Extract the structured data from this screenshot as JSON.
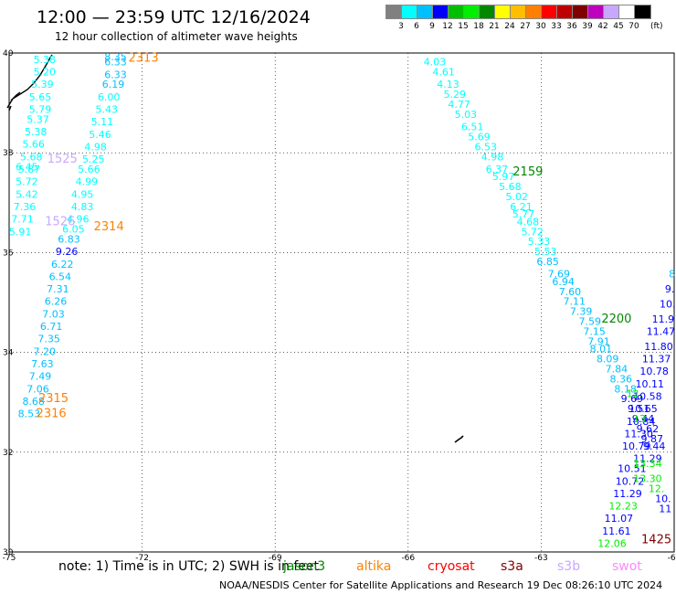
{
  "title": "12:00 — 23:59 UTC 12/16/2024",
  "subtitle": "12 hour collection of altimeter wave heights",
  "legend": {
    "levels": [
      "3",
      "6",
      "9",
      "12",
      "15",
      "18",
      "21",
      "24",
      "27",
      "30",
      "33",
      "36",
      "39",
      "42",
      "45",
      "70"
    ],
    "colors": [
      "#808080",
      "#00ffff",
      "#00bfff",
      "#0000ff",
      "#00bf00",
      "#00ee00",
      "#008800",
      "#ffff00",
      "#ffbf00",
      "#ff8000",
      "#ff0000",
      "#bf0000",
      "#800000",
      "#bf00bf",
      "#c8a8ff",
      "#ffffff",
      "#000000"
    ],
    "unit": "(ft)"
  },
  "axes": {
    "lon_labels": [
      "-75",
      "-72",
      "-69",
      "-66",
      "-63",
      "-60"
    ],
    "lat_labels": [
      "40",
      "38",
      "36",
      "34",
      "32",
      "30"
    ]
  },
  "note": "note:  1) Time is in UTC; 2) SWH is in feet",
  "satellites": [
    {
      "name": "jason3",
      "color": "#008800"
    },
    {
      "name": "altika",
      "color": "#ff8000"
    },
    {
      "name": "cryosat",
      "color": "#ff0000"
    },
    {
      "name": "s3a",
      "color": "#800000"
    },
    {
      "name": "s3b",
      "color": "#c8a8ff"
    },
    {
      "name": "swot",
      "color": "#ff88ff"
    }
  ],
  "credit": "NOAA/NESDIS Center for Satellite Applications and Research    19 Dec 08:26:10 UTC 2024",
  "track_labels": [
    {
      "text": "2313",
      "lon": -71.97,
      "lat": 39.83,
      "color": "#ff8000"
    },
    {
      "text": "1525",
      "lon": -73.8,
      "lat": 37.8,
      "color": "#c8a8ff"
    },
    {
      "text": "1526",
      "lon": -73.85,
      "lat": 36.55,
      "color": "#c8a8ff"
    },
    {
      "text": "2314",
      "lon": -72.75,
      "lat": 36.45,
      "color": "#ff8000"
    },
    {
      "text": "2315",
      "lon": -74.0,
      "lat": 33.0,
      "color": "#ff8000"
    },
    {
      "text": "2316",
      "lon": -74.05,
      "lat": 32.7,
      "color": "#ff8000"
    },
    {
      "text": "2159",
      "lon": -63.3,
      "lat": 37.55,
      "color": "#008800"
    },
    {
      "text": "2200",
      "lon": -61.3,
      "lat": 34.6,
      "color": "#008800"
    },
    {
      "text": "1425",
      "lon": -60.4,
      "lat": 30.17,
      "color": "#800000"
    }
  ],
  "swh_points": [
    {
      "v": "5.38",
      "lon": -74.2,
      "lat": 39.8,
      "c": "#00ffff"
    },
    {
      "v": "5.20",
      "lon": -74.2,
      "lat": 39.55,
      "c": "#00ffff"
    },
    {
      "v": "5.39",
      "lon": -74.25,
      "lat": 39.3,
      "c": "#00ffff"
    },
    {
      "v": "5.65",
      "lon": -74.3,
      "lat": 39.05,
      "c": "#00ffff"
    },
    {
      "v": "5.79",
      "lon": -74.3,
      "lat": 38.8,
      "c": "#00ffff"
    },
    {
      "v": "5.37",
      "lon": -74.35,
      "lat": 38.6,
      "c": "#00ffff"
    },
    {
      "v": "5.38",
      "lon": -74.4,
      "lat": 38.35,
      "c": "#00ffff"
    },
    {
      "v": "5.66",
      "lon": -74.45,
      "lat": 38.1,
      "c": "#00ffff"
    },
    {
      "v": "5.68",
      "lon": -74.5,
      "lat": 37.85,
      "c": "#00ffff"
    },
    {
      "v": "6.45",
      "lon": -74.6,
      "lat": 37.65,
      "c": "#00ffff"
    },
    {
      "v": "5.87",
      "lon": -74.55,
      "lat": 37.6,
      "c": "#00ffff"
    },
    {
      "v": "5.72",
      "lon": -74.6,
      "lat": 37.35,
      "c": "#00ffff"
    },
    {
      "v": "5.42",
      "lon": -74.6,
      "lat": 37.1,
      "c": "#00ffff"
    },
    {
      "v": "7.36",
      "lon": -74.65,
      "lat": 36.85,
      "c": "#00ffff"
    },
    {
      "v": "7.71",
      "lon": -74.7,
      "lat": 36.6,
      "c": "#00ffff"
    },
    {
      "v": "5.91",
      "lon": -74.75,
      "lat": 36.35,
      "c": "#00ffff"
    },
    {
      "v": "8.35",
      "lon": -72.6,
      "lat": 39.85,
      "c": "#00bfff"
    },
    {
      "v": "6.33",
      "lon": -72.6,
      "lat": 39.75,
      "c": "#00bfff"
    },
    {
      "v": "6.33",
      "lon": -72.6,
      "lat": 39.5,
      "c": "#00bfff"
    },
    {
      "v": "6.19",
      "lon": -72.65,
      "lat": 39.3,
      "c": "#00bfff"
    },
    {
      "v": "6.00",
      "lon": -72.75,
      "lat": 39.05,
      "c": "#00ffff"
    },
    {
      "v": "5.43",
      "lon": -72.8,
      "lat": 38.8,
      "c": "#00ffff"
    },
    {
      "v": "5.11",
      "lon": -72.9,
      "lat": 38.55,
      "c": "#00ffff"
    },
    {
      "v": "5.46",
      "lon": -72.95,
      "lat": 38.3,
      "c": "#00ffff"
    },
    {
      "v": "4.98",
      "lon": -73.05,
      "lat": 38.05,
      "c": "#00ffff"
    },
    {
      "v": "5.25",
      "lon": -73.1,
      "lat": 37.8,
      "c": "#00ffff"
    },
    {
      "v": "5.66",
      "lon": -73.2,
      "lat": 37.6,
      "c": "#00ffff"
    },
    {
      "v": "4.99",
      "lon": -73.25,
      "lat": 37.35,
      "c": "#00ffff"
    },
    {
      "v": "4.95",
      "lon": -73.35,
      "lat": 37.1,
      "c": "#00ffff"
    },
    {
      "v": "4.83",
      "lon": -73.35,
      "lat": 36.85,
      "c": "#00ffff"
    },
    {
      "v": "4.96",
      "lon": -73.45,
      "lat": 36.6,
      "c": "#00ffff"
    },
    {
      "v": "6.05",
      "lon": -73.55,
      "lat": 36.4,
      "c": "#00ffff"
    },
    {
      "v": "6.83",
      "lon": -73.65,
      "lat": 36.2,
      "c": "#00bfff"
    },
    {
      "v": "9.26",
      "lon": -73.7,
      "lat": 35.95,
      "c": "#0000ff"
    },
    {
      "v": "6.22",
      "lon": -73.8,
      "lat": 35.7,
      "c": "#00bfff"
    },
    {
      "v": "6.54",
      "lon": -73.85,
      "lat": 35.45,
      "c": "#00bfff"
    },
    {
      "v": "7.31",
      "lon": -73.9,
      "lat": 35.2,
      "c": "#00bfff"
    },
    {
      "v": "6.26",
      "lon": -73.95,
      "lat": 34.95,
      "c": "#00bfff"
    },
    {
      "v": "7.03",
      "lon": -74.0,
      "lat": 34.7,
      "c": "#00bfff"
    },
    {
      "v": "6.71",
      "lon": -74.05,
      "lat": 34.45,
      "c": "#00bfff"
    },
    {
      "v": "7.35",
      "lon": -74.1,
      "lat": 34.2,
      "c": "#00bfff"
    },
    {
      "v": "7.20",
      "lon": -74.2,
      "lat": 33.95,
      "c": "#00bfff"
    },
    {
      "v": "7.63",
      "lon": -74.25,
      "lat": 33.7,
      "c": "#00bfff"
    },
    {
      "v": "7.49",
      "lon": -74.3,
      "lat": 33.45,
      "c": "#00bfff"
    },
    {
      "v": "7.06",
      "lon": -74.35,
      "lat": 33.2,
      "c": "#00bfff"
    },
    {
      "v": "8.68",
      "lon": -74.45,
      "lat": 32.95,
      "c": "#00bfff"
    },
    {
      "v": "8.53",
      "lon": -74.55,
      "lat": 32.7,
      "c": "#00bfff"
    },
    {
      "v": "4.03",
      "lon": -65.4,
      "lat": 39.75,
      "c": "#00ffff"
    },
    {
      "v": "4.61",
      "lon": -65.2,
      "lat": 39.55,
      "c": "#00ffff"
    },
    {
      "v": "4.13",
      "lon": -65.1,
      "lat": 39.3,
      "c": "#00ffff"
    },
    {
      "v": "5.29",
      "lon": -64.95,
      "lat": 39.1,
      "c": "#00ffff"
    },
    {
      "v": "4.77",
      "lon": -64.85,
      "lat": 38.9,
      "c": "#00ffff"
    },
    {
      "v": "5.03",
      "lon": -64.7,
      "lat": 38.7,
      "c": "#00ffff"
    },
    {
      "v": "6.51",
      "lon": -64.55,
      "lat": 38.45,
      "c": "#00ffff"
    },
    {
      "v": "5.69",
      "lon": -64.4,
      "lat": 38.25,
      "c": "#00ffff"
    },
    {
      "v": "6.53",
      "lon": -64.25,
      "lat": 38.05,
      "c": "#00ffff"
    },
    {
      "v": "4.98",
      "lon": -64.1,
      "lat": 37.85,
      "c": "#00ffff"
    },
    {
      "v": "6.37",
      "lon": -64.0,
      "lat": 37.6,
      "c": "#00ffff"
    },
    {
      "v": "5.97",
      "lon": -63.85,
      "lat": 37.45,
      "c": "#00ffff"
    },
    {
      "v": "5.68",
      "lon": -63.7,
      "lat": 37.25,
      "c": "#00ffff"
    },
    {
      "v": "5.02",
      "lon": -63.55,
      "lat": 37.05,
      "c": "#00ffff"
    },
    {
      "v": "6.21",
      "lon": -63.45,
      "lat": 36.85,
      "c": "#00ffff"
    },
    {
      "v": "5.77",
      "lon": -63.4,
      "lat": 36.7,
      "c": "#00ffff"
    },
    {
      "v": "4.68",
      "lon": -63.3,
      "lat": 36.55,
      "c": "#00ffff"
    },
    {
      "v": "5.72",
      "lon": -63.2,
      "lat": 36.35,
      "c": "#00ffff"
    },
    {
      "v": "5.33",
      "lon": -63.05,
      "lat": 36.15,
      "c": "#00ffff"
    },
    {
      "v": "5.53",
      "lon": -62.9,
      "lat": 35.95,
      "c": "#00ffff"
    },
    {
      "v": "6.85",
      "lon": -62.85,
      "lat": 35.75,
      "c": "#00bfff"
    },
    {
      "v": "7.69",
      "lon": -62.6,
      "lat": 35.5,
      "c": "#00bfff"
    },
    {
      "v": "6.94",
      "lon": -62.5,
      "lat": 35.35,
      "c": "#00bfff"
    },
    {
      "v": "7.60",
      "lon": -62.35,
      "lat": 35.15,
      "c": "#00bfff"
    },
    {
      "v": "7.11",
      "lon": -62.25,
      "lat": 34.95,
      "c": "#00bfff"
    },
    {
      "v": "7.39",
      "lon": -62.1,
      "lat": 34.75,
      "c": "#00bfff"
    },
    {
      "v": "7.59",
      "lon": -61.9,
      "lat": 34.55,
      "c": "#00bfff"
    },
    {
      "v": "7.15",
      "lon": -61.8,
      "lat": 34.35,
      "c": "#00bfff"
    },
    {
      "v": "7.91",
      "lon": -61.7,
      "lat": 34.15,
      "c": "#00bfff"
    },
    {
      "v": "8.01",
      "lon": -61.65,
      "lat": 34.0,
      "c": "#00bfff"
    },
    {
      "v": "8.09",
      "lon": -61.5,
      "lat": 33.8,
      "c": "#00bfff"
    },
    {
      "v": "7.84",
      "lon": -61.3,
      "lat": 33.6,
      "c": "#00bfff"
    },
    {
      "v": "8.36",
      "lon": -61.2,
      "lat": 33.4,
      "c": "#00bfff"
    },
    {
      "v": "8.18",
      "lon": -61.1,
      "lat": 33.2,
      "c": "#00bfff"
    },
    {
      "v": "9.69",
      "lon": -60.95,
      "lat": 33.0,
      "c": "#0000ff"
    },
    {
      "v": "9.51",
      "lon": -60.8,
      "lat": 32.8,
      "c": "#0000ff"
    },
    {
      "v": "9.44",
      "lon": -60.7,
      "lat": 32.6,
      "c": "#0000ff"
    },
    {
      "v": "9.62",
      "lon": -60.6,
      "lat": 32.4,
      "c": "#0000ff"
    },
    {
      "v": "9.87",
      "lon": -60.5,
      "lat": 32.2,
      "c": "#0000ff"
    },
    {
      "v": "9.44",
      "lon": -60.45,
      "lat": 32.05,
      "c": "#0000ff"
    },
    {
      "v": "8",
      "lon": -60.05,
      "lat": 35.5,
      "c": "#00bfff"
    },
    {
      "v": "9.",
      "lon": -60.1,
      "lat": 35.2,
      "c": "#0000ff"
    },
    {
      "v": "10.",
      "lon": -60.15,
      "lat": 34.9,
      "c": "#0000ff"
    },
    {
      "v": "11.9",
      "lon": -60.25,
      "lat": 34.6,
      "c": "#0000ff"
    },
    {
      "v": "11.47",
      "lon": -60.3,
      "lat": 34.35,
      "c": "#0000ff"
    },
    {
      "v": "11.80",
      "lon": -60.35,
      "lat": 34.05,
      "c": "#0000ff"
    },
    {
      "v": "11.37",
      "lon": -60.4,
      "lat": 33.8,
      "c": "#0000ff"
    },
    {
      "v": "10.78",
      "lon": -60.45,
      "lat": 33.55,
      "c": "#0000ff"
    },
    {
      "v": "10.11",
      "lon": -60.55,
      "lat": 33.3,
      "c": "#0000ff"
    },
    {
      "v": "10.58",
      "lon": -60.6,
      "lat": 33.05,
      "c": "#0000ff"
    },
    {
      "v": "10.65",
      "lon": -60.7,
      "lat": 32.8,
      "c": "#0000ff"
    },
    {
      "v": "10.84",
      "lon": -60.75,
      "lat": 32.55,
      "c": "#0000ff"
    },
    {
      "v": "11.30",
      "lon": -60.8,
      "lat": 32.3,
      "c": "#0000ff"
    },
    {
      "v": "10.79",
      "lon": -60.85,
      "lat": 32.05,
      "c": "#0000ff"
    },
    {
      "v": "11.29",
      "lon": -60.6,
      "lat": 31.8,
      "c": "#0000ff"
    },
    {
      "v": "10.51",
      "lon": -60.95,
      "lat": 31.6,
      "c": "#0000ff"
    },
    {
      "v": "10.72",
      "lon": -61.0,
      "lat": 31.35,
      "c": "#0000ff"
    },
    {
      "v": "11.29",
      "lon": -61.05,
      "lat": 31.1,
      "c": "#0000ff"
    },
    {
      "v": "12.23",
      "lon": -61.15,
      "lat": 30.85,
      "c": "#00ee00"
    },
    {
      "v": "11.07",
      "lon": -61.25,
      "lat": 30.6,
      "c": "#0000ff"
    },
    {
      "v": "11.61",
      "lon": -61.3,
      "lat": 30.35,
      "c": "#0000ff"
    },
    {
      "v": "12.06",
      "lon": -61.4,
      "lat": 30.1,
      "c": "#00ee00"
    },
    {
      "v": "12.",
      "lon": -60.9,
      "lat": 33.1,
      "c": "#00ee00"
    },
    {
      "v": "13.",
      "lon": -60.75,
      "lat": 32.6,
      "c": "#00ee00"
    },
    {
      "v": "13.34",
      "lon": -60.6,
      "lat": 31.7,
      "c": "#00ee00"
    },
    {
      "v": "13.30",
      "lon": -60.6,
      "lat": 31.4,
      "c": "#00ee00"
    },
    {
      "v": "12.",
      "lon": -60.4,
      "lat": 31.2,
      "c": "#00ee00"
    },
    {
      "v": "10.",
      "lon": -60.25,
      "lat": 31.0,
      "c": "#0000ff"
    },
    {
      "v": "11",
      "lon": -60.2,
      "lat": 30.8,
      "c": "#0000ff"
    }
  ]
}
